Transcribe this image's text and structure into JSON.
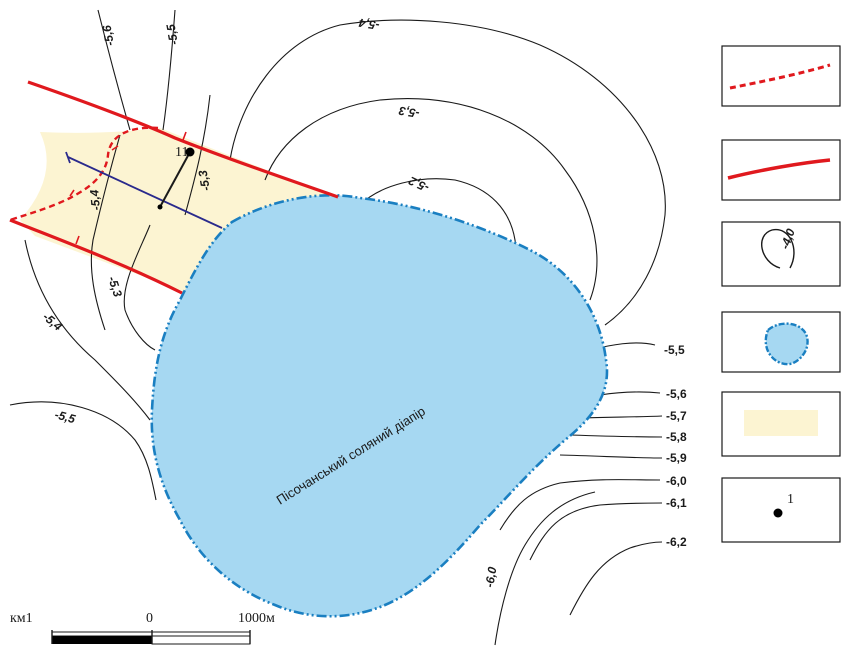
{
  "map": {
    "diapir_label": "Пісочанський соляний діапір",
    "well_label": "11",
    "contour_labels": {
      "c_54_top": "-5,4",
      "c_53_top": "-5,3",
      "c_52": "-5,2",
      "c_56": "-5,6",
      "c_55_top": "-5,5",
      "c_54_left": "-5,4",
      "c_53_mid": "-5,3",
      "c_53_left": "-5,3",
      "c_54_lower": "-5,4",
      "c_55_lower": "-5,5",
      "c_60_bottom": "-6,0"
    },
    "right_labels": [
      "-5,5",
      "-5,6",
      "-5,7",
      "-5,8",
      "-5,9",
      "-6,0",
      "-6,1",
      "-6,2"
    ],
    "colors": {
      "fault": "#e0191e",
      "diapir_fill": "#a6d8f2",
      "diapir_border": "#1a7fc1",
      "zone_fill": "#fcf4d2",
      "profile": "#2a2a8c",
      "contour": "#1a1a1a"
    }
  },
  "scale": {
    "left_label": "км1",
    "zero_label": "0",
    "right_label": "1000м"
  },
  "legend": {
    "items": [
      {
        "index": "1",
        "symbol": "dashed-red-line"
      },
      {
        "index": "2",
        "symbol": "solid-red-line"
      },
      {
        "index": "3",
        "symbol": "contour-loop",
        "sample": "-4,0"
      },
      {
        "index": "4",
        "symbol": "blue-dashdot-outline"
      },
      {
        "index": "5",
        "symbol": "beige-fill"
      },
      {
        "index": "6",
        "symbol": "black-dot",
        "sample": "1"
      }
    ]
  }
}
